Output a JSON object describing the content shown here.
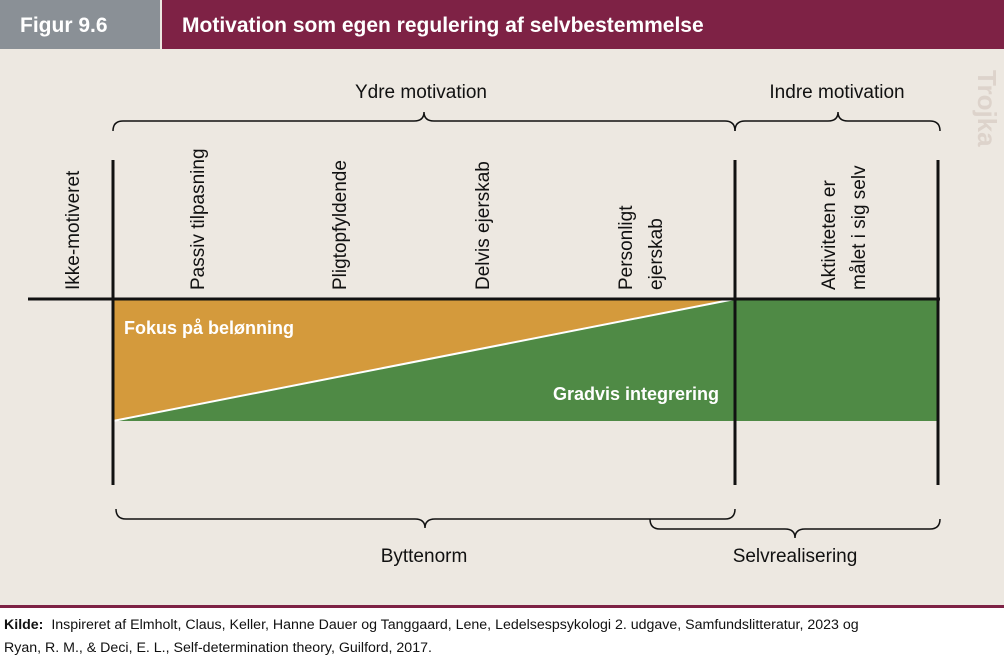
{
  "header": {
    "figure_label": "Figur 9.6",
    "title": "Motivation som egen regulering af selvbestemmelse"
  },
  "diagram": {
    "top_groups": [
      "Ydre motivation",
      "Indre motivation"
    ],
    "left_label": "Ikke-motiveret",
    "stages": [
      [
        "Passiv tilpasning"
      ],
      [
        "Pligtopfyldende"
      ],
      [
        "Delvis ejerskab"
      ],
      [
        "Personligt",
        "ejerskab"
      ],
      [
        "Aktiviteten er",
        "målet i sig selv"
      ]
    ],
    "areas": [
      "Fokus på belønning",
      "Gradvis integrering"
    ],
    "bottom_groups": [
      "Byttenorm",
      "Selvrealisering"
    ],
    "watermark": "Trojka"
  },
  "source": {
    "label": "Kilde:",
    "lines": [
      "Inspireret af Elmholt, Claus, Keller, Hanne Dauer og Tanggaard, Lene, Ledelsespsykologi 2. udgave, Samfundslitteratur, 2023 og",
      "Ryan, R. M., & Deci, E. L., Self-determination theory, Guilford, 2017."
    ]
  }
}
